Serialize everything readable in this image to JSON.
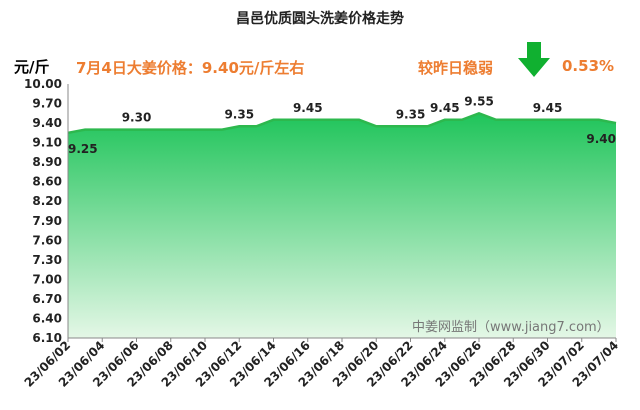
{
  "chart_data": {
    "type": "area",
    "title": "昌邑优质圆头洗姜价格走势",
    "ylabel": "元/斤",
    "ylim": [
      6.1,
      10.0
    ],
    "yticks": [
      "10.00",
      "9.70",
      "9.40",
      "9.10",
      "8.90",
      "8.60",
      "8.20",
      "7.90",
      "7.60",
      "7.30",
      "7.00",
      "6.70",
      "6.40",
      "6.10"
    ],
    "xticks": [
      "23/06/02",
      "23/06/04",
      "23/06/06",
      "23/06/08",
      "23/06/10",
      "23/06/12",
      "23/06/14",
      "23/06/16",
      "23/06/18",
      "23/06/20",
      "23/06/22",
      "23/06/24",
      "23/06/26",
      "23/06/28",
      "23/06/30",
      "23/07/02",
      "23/07/04"
    ],
    "x": [
      "23/06/02",
      "23/06/03",
      "23/06/04",
      "23/06/05",
      "23/06/06",
      "23/06/07",
      "23/06/08",
      "23/06/09",
      "23/06/10",
      "23/06/11",
      "23/06/12",
      "23/06/13",
      "23/06/14",
      "23/06/15",
      "23/06/16",
      "23/06/17",
      "23/06/18",
      "23/06/19",
      "23/06/20",
      "23/06/21",
      "23/06/22",
      "23/06/23",
      "23/06/24",
      "23/06/25",
      "23/06/26",
      "23/06/27",
      "23/06/28",
      "23/06/29",
      "23/06/30",
      "23/07/01",
      "23/07/02",
      "23/07/03",
      "23/07/04"
    ],
    "values": [
      9.25,
      9.3,
      9.3,
      9.3,
      9.3,
      9.3,
      9.3,
      9.3,
      9.3,
      9.3,
      9.35,
      9.35,
      9.45,
      9.45,
      9.45,
      9.45,
      9.45,
      9.45,
      9.35,
      9.35,
      9.35,
      9.35,
      9.45,
      9.45,
      9.55,
      9.45,
      9.45,
      9.45,
      9.45,
      9.45,
      9.45,
      9.45,
      9.4
    ],
    "data_labels": [
      {
        "x": "23/06/02",
        "text": "9.25",
        "pos": "below"
      },
      {
        "x": "23/06/06",
        "text": "9.30",
        "pos": "above"
      },
      {
        "x": "23/06/12",
        "text": "9.35",
        "pos": "above"
      },
      {
        "x": "23/06/16",
        "text": "9.45",
        "pos": "above"
      },
      {
        "x": "23/06/22",
        "text": "9.35",
        "pos": "above"
      },
      {
        "x": "23/06/24",
        "text": "9.45",
        "pos": "above"
      },
      {
        "x": "23/06/26",
        "text": "9.55",
        "pos": "above"
      },
      {
        "x": "23/06/30",
        "text": "9.45",
        "pos": "above"
      },
      {
        "x": "23/07/04",
        "text": "9.40",
        "pos": "below"
      }
    ],
    "grid": false
  },
  "annotation": {
    "main": "7月4日大姜价格：9.40元/斤左右",
    "trend": "较昨日稳弱",
    "change": "0.53%",
    "trend_icon": "down-arrow-icon"
  },
  "watermark": "中姜网监制（www.jiang7.com）",
  "colors": {
    "line": "#2DB84E",
    "fill_top": "#1FC45A",
    "fill_bottom": "#E4F7E6",
    "annotation": "#ED7D31",
    "arrow": "#10B030"
  }
}
